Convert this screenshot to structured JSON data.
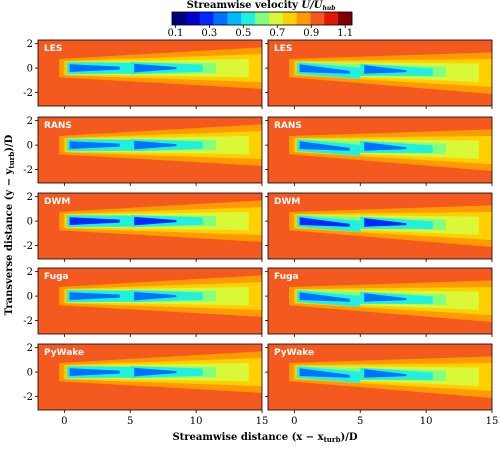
{
  "chart_data": {
    "type": "heatmap",
    "colorbar": {
      "title": "Streamwise velocity",
      "symbol": [
        "U/U",
        "hub"
      ],
      "lim": [
        0.08,
        1.14
      ],
      "ticks": [
        0.1,
        0.3,
        0.5,
        0.7,
        0.9,
        1.1
      ],
      "colors": [
        "#00007f",
        "#0000c8",
        "#0028ff",
        "#0070ff",
        "#00b8ff",
        "#20f0e0",
        "#80ff80",
        "#d8f838",
        "#ffd000",
        "#ff9a00",
        "#f45a20",
        "#e01800",
        "#7f0000"
      ]
    },
    "panels": [
      "LES",
      "RANS",
      "DWM",
      "Fuga",
      "PyWake"
    ],
    "x_label": [
      "Streamwise distance (x − x",
      "turb",
      ")/D"
    ],
    "y_label": [
      "Transverse distance (y − y",
      "turb",
      ")/D"
    ],
    "xlim": [
      -2,
      15
    ],
    "xticks": [
      0,
      5,
      10,
      15
    ],
    "ylim": [
      -3.1,
      2.3
    ],
    "yticks": [
      -2,
      0,
      2
    ]
  }
}
